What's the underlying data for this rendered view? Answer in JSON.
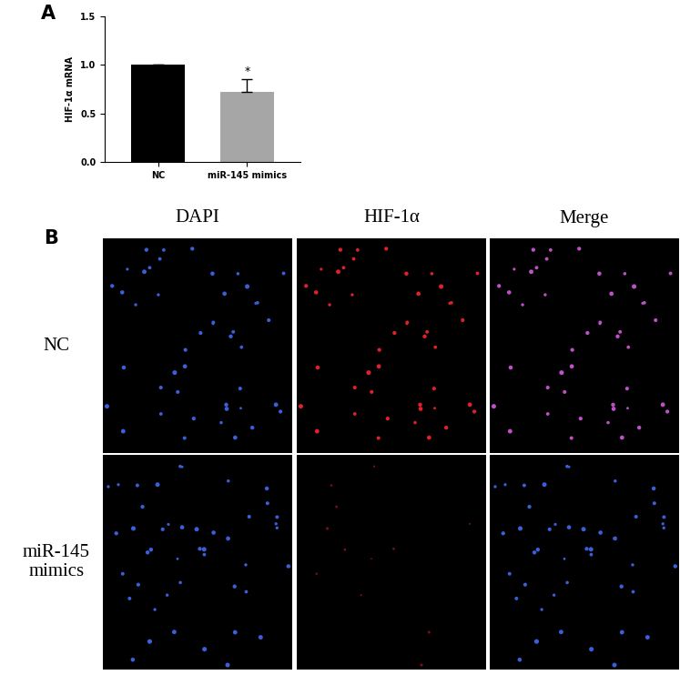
{
  "chart_data": {
    "type": "bar",
    "categories": [
      "NC",
      "miR-145 mimics"
    ],
    "values": [
      1.0,
      0.72
    ],
    "errors": [
      0,
      0.13
    ],
    "colors": [
      "#000000",
      "#a6a6a6"
    ],
    "ylabel": "HIF-1α mRNA",
    "ylim": [
      0,
      1.5
    ],
    "yticks": [
      {
        "value": 0,
        "label": "0.0"
      },
      {
        "value": 0.5,
        "label": "0.5"
      },
      {
        "value": 1.0,
        "label": "1.0"
      },
      {
        "value": 1.5,
        "label": "1.5"
      }
    ],
    "annotations": [
      {
        "text": "*",
        "category": "miR-145 mimics"
      }
    ],
    "grid": false
  },
  "panel_labels": [
    "A",
    "B"
  ],
  "image_panel": {
    "columns": [
      "DAPI",
      "HIF-1α",
      "Merge"
    ],
    "rows": [
      "NC",
      "miR-145\nmimics"
    ]
  }
}
